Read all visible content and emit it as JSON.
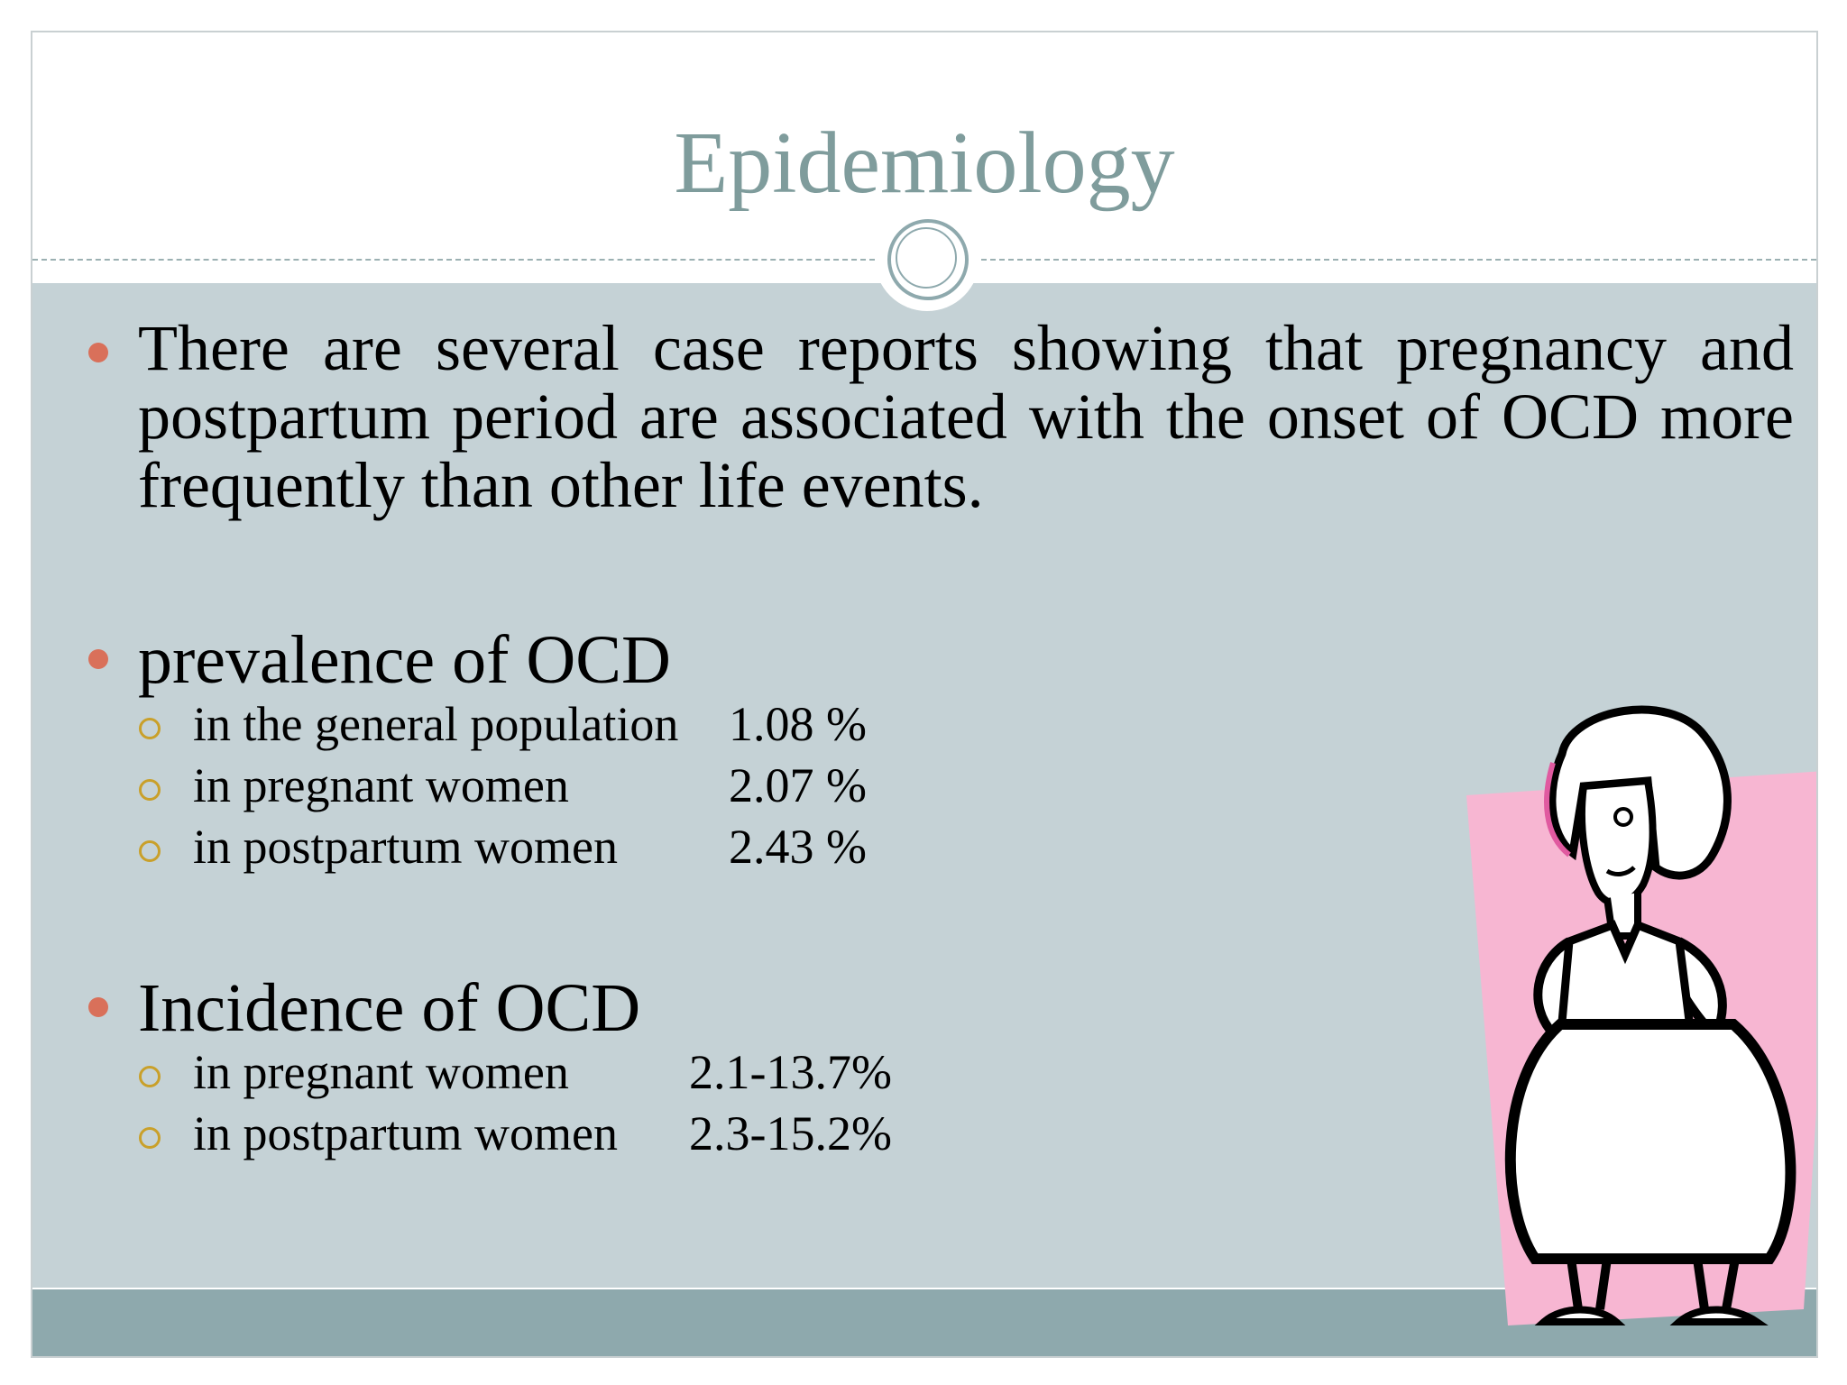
{
  "slide": {
    "title": "Epidemiology",
    "paragraph": "There are several case reports showing that pregnancy and postpartum period are associated with the onset of OCD more frequently than other life events.",
    "prevalence": {
      "heading": "prevalence of OCD",
      "items": [
        {
          "label": "in the general population",
          "value": "1.08 %"
        },
        {
          "label": "in pregnant women",
          "value": "2.07 %"
        },
        {
          "label": "in postpartum women",
          "value": "2.43 %"
        }
      ]
    },
    "incidence": {
      "heading": "Incidence of OCD",
      "items": [
        {
          "label": "in pregnant women",
          "value": "2.1-13.7%"
        },
        {
          "label": "in postpartum women",
          "value": "2.3-15.2%"
        }
      ]
    }
  },
  "colors": {
    "title": "#7f9c9c",
    "content_bg": "#c5d2d6",
    "footer_bar": "#8ea9ad",
    "bullet": "#d9705a",
    "sub_bullet": "#c9a02a",
    "clipart_pink": "#f7b6d2"
  },
  "icons": {
    "ornament": "circle-ornament-icon",
    "clipart": "pregnant-woman-illustration"
  }
}
